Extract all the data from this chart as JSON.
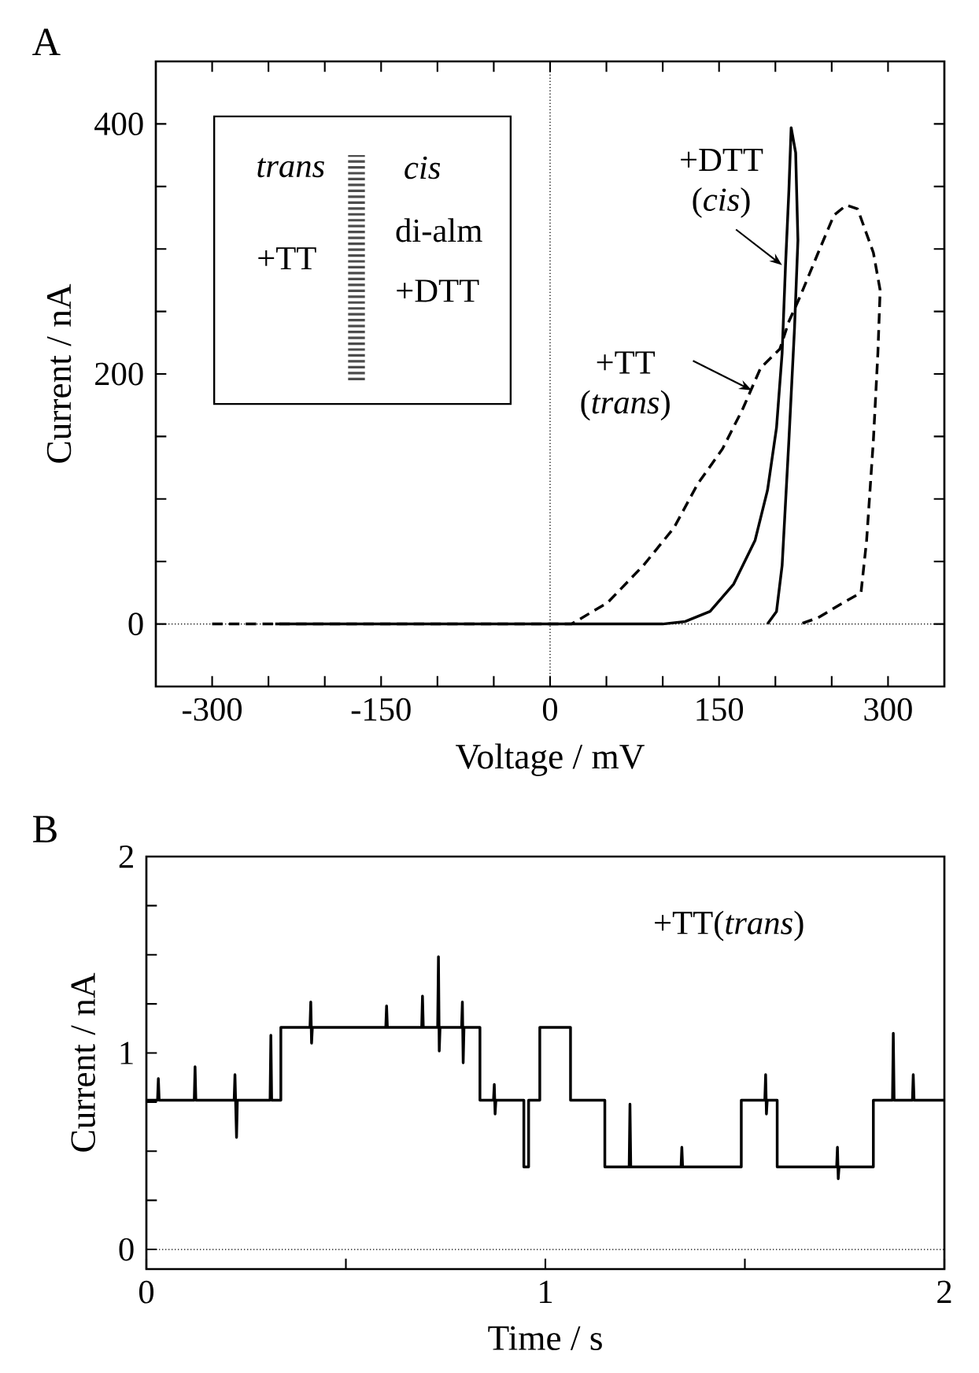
{
  "chart_data": [
    {
      "type": "line",
      "xlabel": "Voltage / mV",
      "ylabel": "Current / nA",
      "xlim": [
        -350,
        350
      ],
      "ylim": [
        -50,
        450
      ],
      "xticks": [
        -300,
        {
          "value": -250,
          "label": null
        },
        {
          "value": -200,
          "label": null
        },
        -150,
        {
          "value": -100,
          "label": null
        },
        {
          "value": -50,
          "label": null
        },
        0,
        {
          "value": 50,
          "label": null
        },
        {
          "value": 100,
          "label": null
        },
        150,
        {
          "value": 200,
          "label": null
        },
        {
          "value": 250,
          "label": null
        },
        300
      ],
      "yticks": [
        0,
        {
          "value": 50,
          "label": null
        },
        {
          "value": 100,
          "label": null
        },
        {
          "value": 150,
          "label": null
        },
        200,
        {
          "value": 250,
          "label": null
        },
        {
          "value": 300,
          "label": null
        },
        {
          "value": 350,
          "label": null
        },
        400
      ],
      "series": [
        {
          "color": "#000000",
          "line_style": "dashed",
          "x": [
            -300,
            -200,
            -100,
            0,
            19,
            51,
            83,
            110,
            131,
            153,
            171,
            187,
            204,
            212,
            222,
            238,
            252,
            263,
            273,
            287,
            293,
            291,
            287,
            281,
            276,
            260,
            238,
            222
          ],
          "values": [
            0,
            0,
            0,
            0,
            0,
            17,
            47,
            77,
            112,
            140,
            172,
            205,
            220,
            242,
            262,
            297,
            327,
            335,
            332,
            297,
            267,
            217,
            147,
            67,
            25,
            17,
            5,
            0
          ]
        },
        {
          "color": "#000000",
          "line_style": "solid",
          "x": [
            -244,
            -100,
            0,
            100,
            120,
            142,
            163,
            182,
            193,
            201,
            206,
            209,
            212,
            214,
            218,
            220,
            217,
            212,
            206,
            201,
            193
          ],
          "values": [
            0,
            0,
            0,
            0,
            2,
            10,
            32,
            67,
            107,
            157,
            217,
            287,
            347,
            397,
            377,
            307,
            237,
            147,
            47,
            10,
            0
          ]
        }
      ],
      "ref_lines": [
        {
          "axis": "y",
          "value": 0,
          "line_style": "dotted"
        },
        {
          "axis": "x",
          "value": 0,
          "line_style": "dotted"
        }
      ],
      "annotations": [
        "A",
        "*trans*",
        "*cis*",
        "+TT",
        "di-alm",
        "+DTT",
        {
          "text": "+DTT (*cis*)",
          "x": 206,
          "y": 287
        },
        {
          "text": "+TT (*trans*)",
          "x": 179,
          "y": 187
        }
      ]
    },
    {
      "type": "line",
      "xlabel": "Time / s",
      "ylabel": "Current / nA",
      "xlim": [
        0,
        2
      ],
      "ylim": [
        -0.1,
        2
      ],
      "xticks": [
        0,
        {
          "value": 0.5,
          "label": null
        },
        1,
        {
          "value": 1.5,
          "label": null
        },
        2
      ],
      "yticks": [
        0,
        {
          "value": 0.25,
          "label": null
        },
        {
          "value": 0.5,
          "label": null
        },
        {
          "value": 0.75,
          "label": null
        },
        1,
        {
          "value": 1.25,
          "label": null
        },
        {
          "value": 1.5,
          "label": null
        },
        {
          "value": 1.75,
          "label": null
        },
        2
      ],
      "series": [
        {
          "color": "#000000",
          "line_style": "solid",
          "x": [
            0,
            0.028,
            0.03,
            0.032,
            0.12,
            0.122,
            0.124,
            0.22,
            0.222,
            0.226,
            0.228,
            0.31,
            0.312,
            0.314,
            0.337,
            0.337,
            0.41,
            0.412,
            0.414,
            0.416,
            0.6,
            0.602,
            0.604,
            0.69,
            0.692,
            0.694,
            0.73,
            0.732,
            0.734,
            0.736,
            0.79,
            0.792,
            0.794,
            0.796,
            0.836,
            0.836,
            0.87,
            0.872,
            0.874,
            0.876,
            0.946,
            0.946,
            0.958,
            0.958,
            0.986,
            0.986,
            1.063,
            1.063,
            1.149,
            1.149,
            1.21,
            1.212,
            1.214,
            1.34,
            1.342,
            1.344,
            1.491,
            1.491,
            1.55,
            1.552,
            1.554,
            1.556,
            1.581,
            1.581,
            1.73,
            1.732,
            1.734,
            1.736,
            1.822,
            1.822,
            1.87,
            1.872,
            1.874,
            1.92,
            1.922,
            1.924,
            2.0
          ],
          "values": [
            0.76,
            0.76,
            0.87,
            0.76,
            0.76,
            0.93,
            0.76,
            0.76,
            0.89,
            0.57,
            0.76,
            0.76,
            1.09,
            0.76,
            0.76,
            1.13,
            1.13,
            1.26,
            1.05,
            1.13,
            1.13,
            1.24,
            1.13,
            1.13,
            1.29,
            1.13,
            1.13,
            1.49,
            1.01,
            1.13,
            1.13,
            1.26,
            0.95,
            1.13,
            1.13,
            0.76,
            0.76,
            0.84,
            0.69,
            0.76,
            0.76,
            0.42,
            0.42,
            0.76,
            0.76,
            1.13,
            1.13,
            0.76,
            0.76,
            0.42,
            0.42,
            0.74,
            0.42,
            0.42,
            0.52,
            0.42,
            0.42,
            0.76,
            0.76,
            0.89,
            0.69,
            0.76,
            0.76,
            0.42,
            0.42,
            0.52,
            0.36,
            0.42,
            0.42,
            0.76,
            0.76,
            1.1,
            0.76,
            0.76,
            0.89,
            0.76,
            0.76
          ]
        }
      ],
      "ref_lines": [
        {
          "axis": "y",
          "value": 0,
          "line_style": "dotted"
        }
      ],
      "annotations": [
        "B",
        "+TT(*trans*)"
      ]
    }
  ]
}
